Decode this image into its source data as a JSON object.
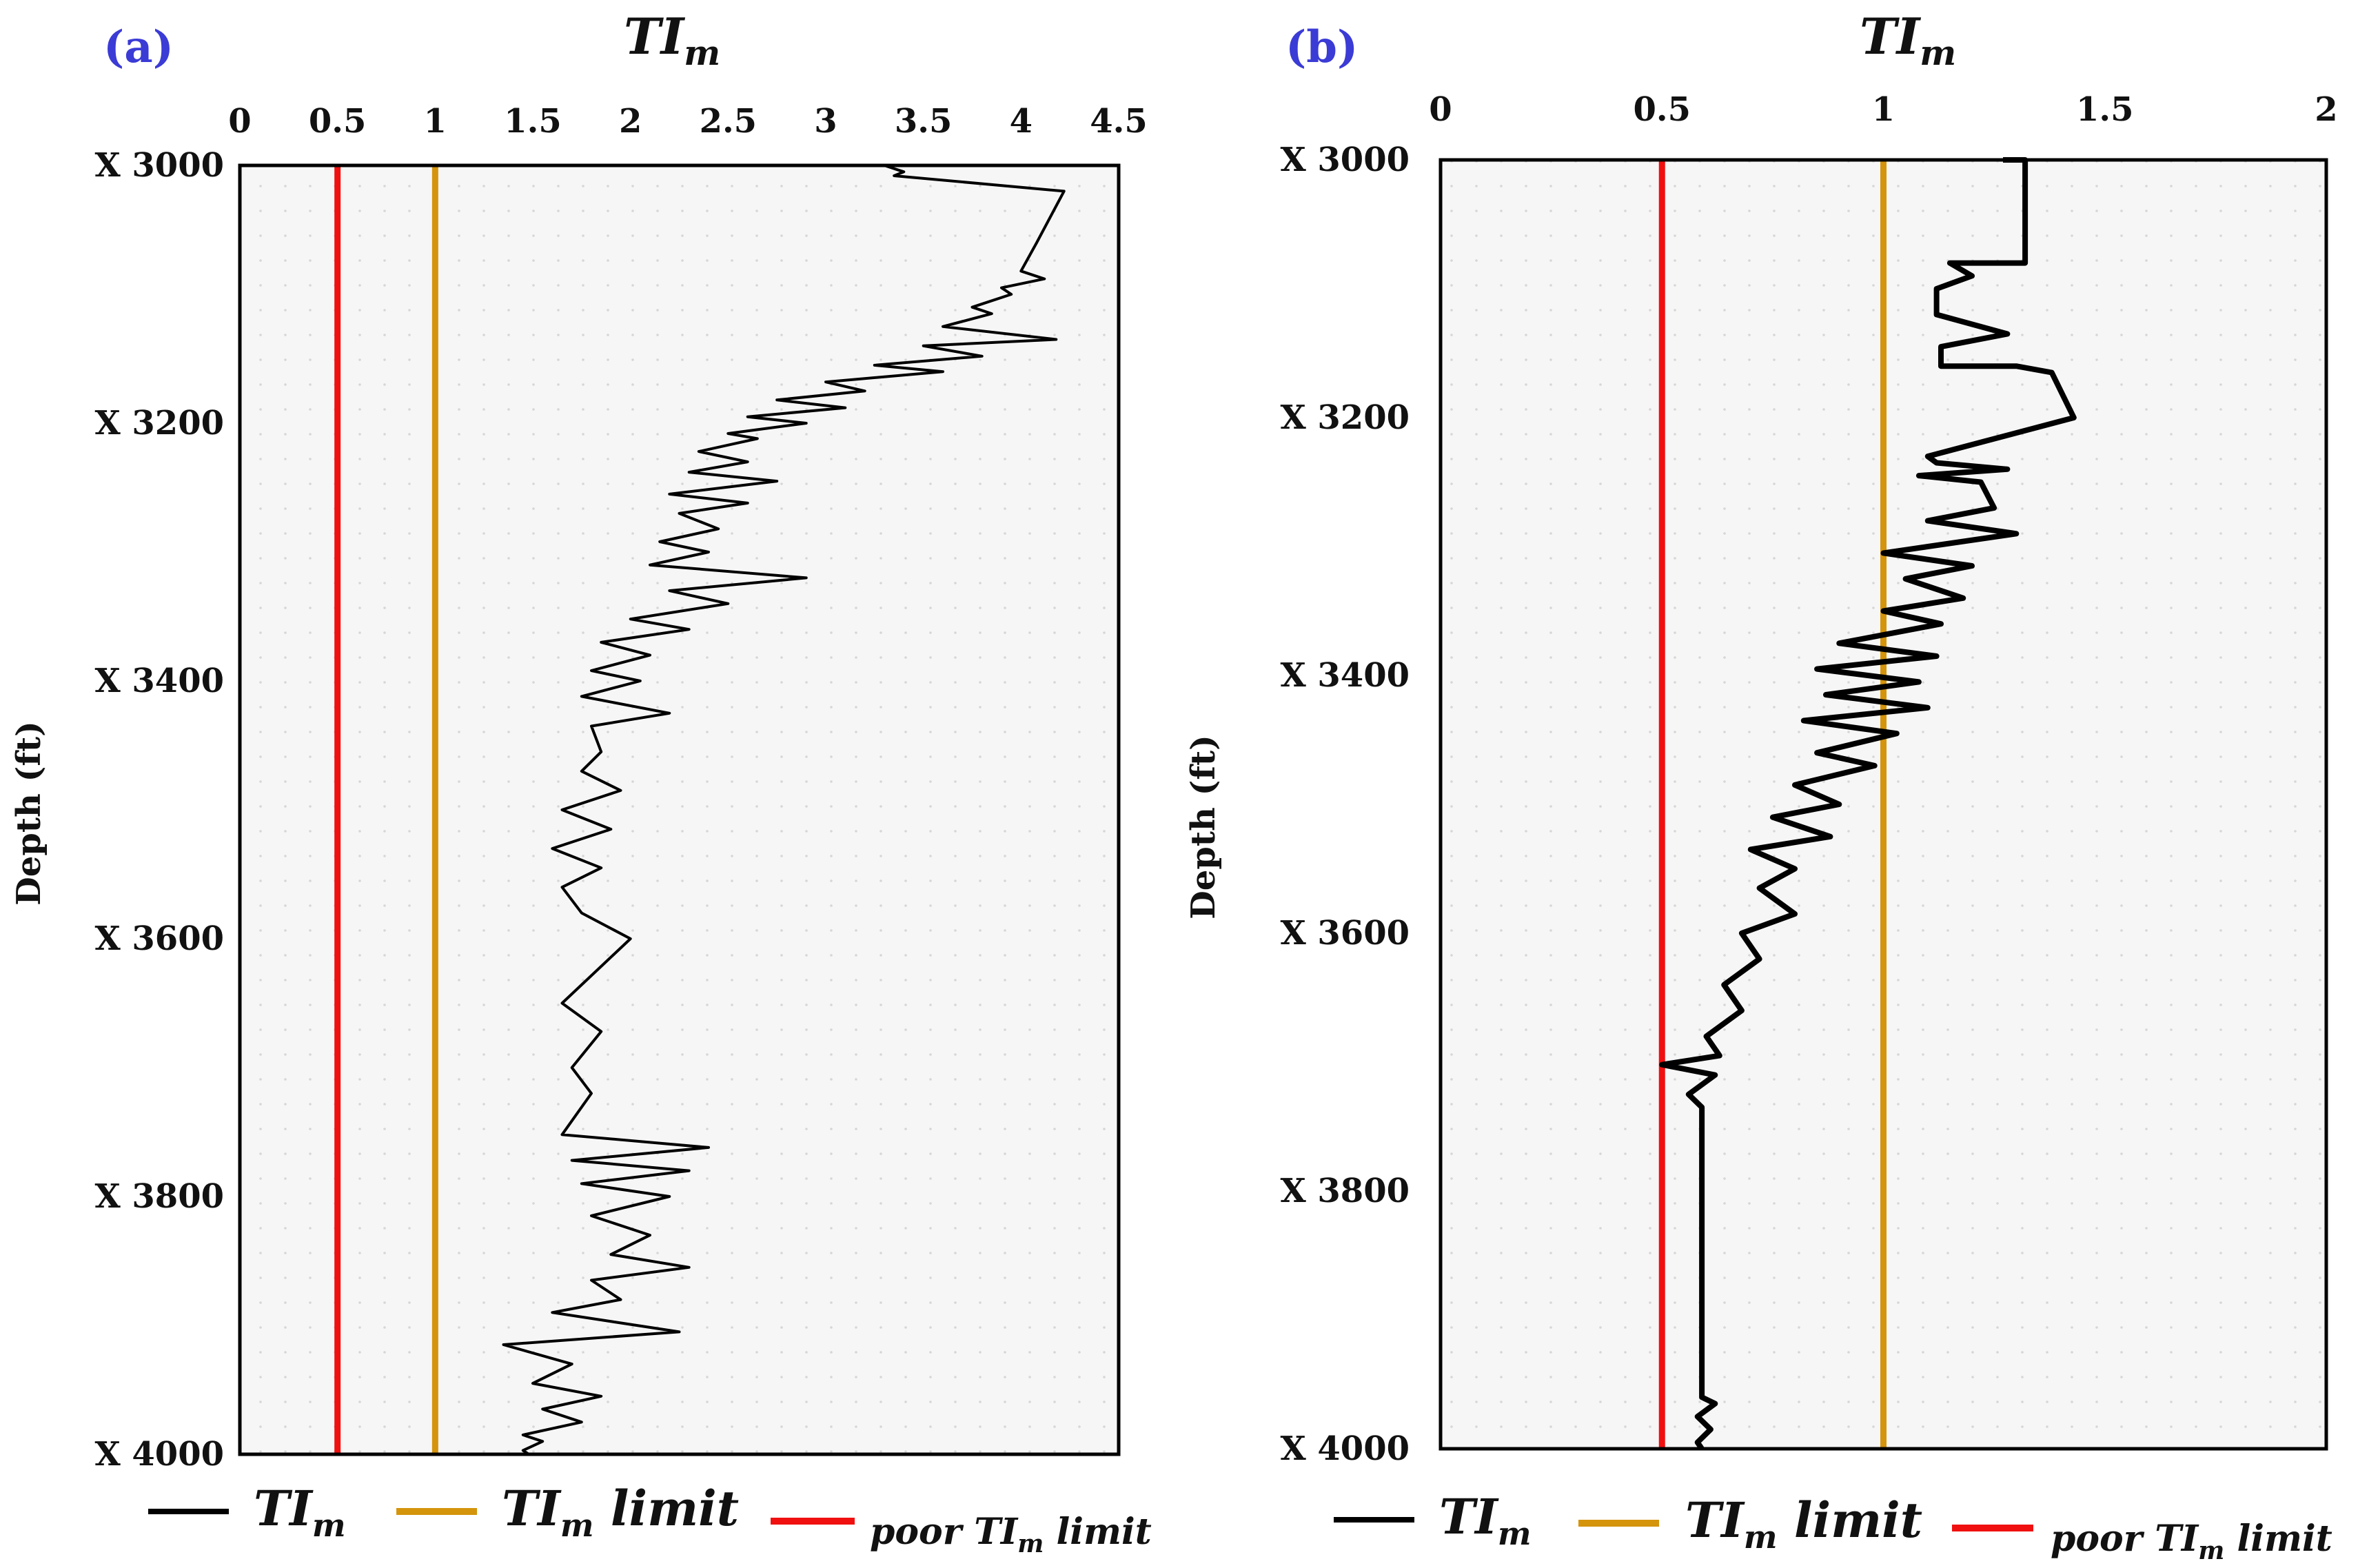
{
  "colors": {
    "tim_line": "#000000",
    "tim_limit": "#d4940c",
    "poor_limit": "#f01010",
    "panel_label": "#3b3bd6",
    "plot_bg": "#f6f6f6",
    "grid_dot": "#d6d6d6"
  },
  "legend": {
    "tim_main": "TI",
    "tim_sub": "m",
    "limit_main": "TI",
    "limit_sub": "m",
    "limit_suffix": " limit",
    "poor_prefix": "poor ",
    "poor_main": "TI",
    "poor_sub": "m",
    "poor_suffix": " limit"
  },
  "chart_data": [
    {
      "type": "line",
      "panel": "(a)",
      "title_main": "TI",
      "title_sub": "m",
      "ylabel": "Depth (ft)",
      "xlim": [
        0,
        4.5
      ],
      "ylim": [
        3000,
        4000
      ],
      "x_ticks": [
        "0",
        "0.5",
        "1",
        "1.5",
        "2",
        "2.5",
        "3",
        "3.5",
        "4",
        "4.5"
      ],
      "x_tick_values": [
        0,
        0.5,
        1,
        1.5,
        2,
        2.5,
        3,
        3.5,
        4,
        4.5
      ],
      "y_ticks": [
        "X 3000",
        "X 3200",
        "X 3400",
        "X 3600",
        "X 3800",
        "X 4000"
      ],
      "y_tick_values": [
        3000,
        3200,
        3400,
        3600,
        3800,
        4000
      ],
      "limit_lines": [
        {
          "name": "TIm limit",
          "x": 1.0
        },
        {
          "name": "poor TIm limit",
          "x": 0.5
        }
      ],
      "series": [
        {
          "name": "TIm",
          "points": [
            [
              3.3,
              3000
            ],
            [
              3.4,
              3005
            ],
            [
              3.35,
              3008
            ],
            [
              4.22,
              3020
            ],
            [
              4.08,
              3060
            ],
            [
              4.0,
              3082
            ],
            [
              4.12,
              3088
            ],
            [
              3.9,
              3095
            ],
            [
              3.95,
              3100
            ],
            [
              3.75,
              3110
            ],
            [
              3.85,
              3115
            ],
            [
              3.6,
              3125
            ],
            [
              4.18,
              3135
            ],
            [
              3.5,
              3140
            ],
            [
              3.8,
              3148
            ],
            [
              3.25,
              3155
            ],
            [
              3.6,
              3160
            ],
            [
              3.0,
              3168
            ],
            [
              3.2,
              3175
            ],
            [
              2.75,
              3182
            ],
            [
              3.1,
              3188
            ],
            [
              2.6,
              3195
            ],
            [
              2.9,
              3200
            ],
            [
              2.5,
              3208
            ],
            [
              2.65,
              3212
            ],
            [
              2.35,
              3222
            ],
            [
              2.6,
              3230
            ],
            [
              2.3,
              3238
            ],
            [
              2.75,
              3245
            ],
            [
              2.2,
              3255
            ],
            [
              2.6,
              3262
            ],
            [
              2.25,
              3270
            ],
            [
              2.45,
              3282
            ],
            [
              2.15,
              3292
            ],
            [
              2.4,
              3300
            ],
            [
              2.1,
              3310
            ],
            [
              2.9,
              3320
            ],
            [
              2.2,
              3330
            ],
            [
              2.5,
              3340
            ],
            [
              2.0,
              3352
            ],
            [
              2.3,
              3360
            ],
            [
              1.85,
              3370
            ],
            [
              2.1,
              3380
            ],
            [
              1.8,
              3392
            ],
            [
              2.05,
              3400
            ],
            [
              1.75,
              3412
            ],
            [
              2.2,
              3425
            ],
            [
              1.8,
              3435
            ],
            [
              1.85,
              3455
            ],
            [
              1.75,
              3470
            ],
            [
              1.95,
              3485
            ],
            [
              1.65,
              3500
            ],
            [
              1.9,
              3515
            ],
            [
              1.6,
              3530
            ],
            [
              1.85,
              3545
            ],
            [
              1.65,
              3560
            ],
            [
              1.75,
              3580
            ],
            [
              2.0,
              3600
            ],
            [
              1.65,
              3650
            ],
            [
              1.85,
              3672
            ],
            [
              1.7,
              3700
            ],
            [
              1.8,
              3720
            ],
            [
              1.65,
              3752
            ],
            [
              2.4,
              3762
            ],
            [
              1.7,
              3772
            ],
            [
              2.3,
              3780
            ],
            [
              1.75,
              3790
            ],
            [
              2.2,
              3800
            ],
            [
              1.8,
              3815
            ],
            [
              2.1,
              3830
            ],
            [
              1.9,
              3845
            ],
            [
              2.3,
              3855
            ],
            [
              1.8,
              3865
            ],
            [
              1.95,
              3880
            ],
            [
              1.6,
              3890
            ],
            [
              2.25,
              3905
            ],
            [
              1.35,
              3915
            ],
            [
              1.7,
              3930
            ],
            [
              1.5,
              3945
            ],
            [
              1.85,
              3955
            ],
            [
              1.55,
              3965
            ],
            [
              1.75,
              3975
            ],
            [
              1.45,
              3985
            ],
            [
              1.55,
              3990
            ],
            [
              1.45,
              3997
            ],
            [
              1.48,
              4000
            ]
          ]
        }
      ]
    },
    {
      "type": "line",
      "panel": "(b)",
      "title_main": "TI",
      "title_sub": "m",
      "ylabel": "Depth (ft)",
      "xlim": [
        0,
        2
      ],
      "ylim": [
        3000,
        4000
      ],
      "x_ticks": [
        "0",
        "0.5",
        "1",
        "1.5",
        "2"
      ],
      "x_tick_values": [
        0,
        0.5,
        1,
        1.5,
        2
      ],
      "y_ticks": [
        "X 3000",
        "X 3200",
        "X 3400",
        "X 3600",
        "X 3800",
        "X 4000"
      ],
      "y_tick_values": [
        3000,
        3200,
        3400,
        3600,
        3800,
        4000
      ],
      "limit_lines": [
        {
          "name": "TIm limit",
          "x": 1.0
        },
        {
          "name": "poor TIm limit",
          "x": 0.5
        }
      ],
      "series": [
        {
          "name": "TIm",
          "points": [
            [
              1.27,
              3000
            ],
            [
              1.32,
              3000
            ],
            [
              1.32,
              3080
            ],
            [
              1.15,
              3080
            ],
            [
              1.2,
              3090
            ],
            [
              1.12,
              3100
            ],
            [
              1.12,
              3120
            ],
            [
              1.28,
              3135
            ],
            [
              1.13,
              3145
            ],
            [
              1.13,
              3160
            ],
            [
              1.3,
              3160
            ],
            [
              1.38,
              3165
            ],
            [
              1.43,
              3200
            ],
            [
              1.1,
              3230
            ],
            [
              1.12,
              3235
            ],
            [
              1.28,
              3240
            ],
            [
              1.08,
              3245
            ],
            [
              1.22,
              3250
            ],
            [
              1.25,
              3270
            ],
            [
              1.1,
              3280
            ],
            [
              1.3,
              3290
            ],
            [
              1.0,
              3305
            ],
            [
              1.2,
              3315
            ],
            [
              1.05,
              3325
            ],
            [
              1.18,
              3340
            ],
            [
              1.0,
              3350
            ],
            [
              1.13,
              3360
            ],
            [
              0.9,
              3375
            ],
            [
              1.12,
              3385
            ],
            [
              0.85,
              3395
            ],
            [
              1.08,
              3405
            ],
            [
              0.87,
              3415
            ],
            [
              1.1,
              3425
            ],
            [
              0.82,
              3435
            ],
            [
              1.03,
              3445
            ],
            [
              0.85,
              3460
            ],
            [
              0.98,
              3470
            ],
            [
              0.8,
              3485
            ],
            [
              0.9,
              3500
            ],
            [
              0.75,
              3510
            ],
            [
              0.88,
              3525
            ],
            [
              0.7,
              3535
            ],
            [
              0.8,
              3550
            ],
            [
              0.72,
              3565
            ],
            [
              0.8,
              3585
            ],
            [
              0.68,
              3600
            ],
            [
              0.72,
              3620
            ],
            [
              0.64,
              3640
            ],
            [
              0.68,
              3660
            ],
            [
              0.6,
              3680
            ],
            [
              0.63,
              3695
            ],
            [
              0.5,
              3702
            ],
            [
              0.62,
              3710
            ],
            [
              0.56,
              3725
            ],
            [
              0.59,
              3735
            ],
            [
              0.59,
              3960
            ],
            [
              0.62,
              3965
            ],
            [
              0.58,
              3975
            ],
            [
              0.61,
              3985
            ],
            [
              0.58,
              3995
            ],
            [
              0.59,
              4000
            ]
          ]
        }
      ]
    }
  ]
}
